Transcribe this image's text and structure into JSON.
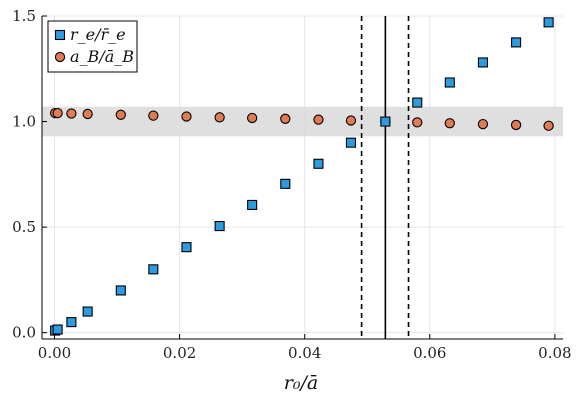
{
  "chart_data": {
    "type": "scatter",
    "title": "",
    "xlabel": "r₀/ā",
    "ylabel": "",
    "xlim": [
      -0.002,
      0.0813
    ],
    "ylim": [
      -0.03,
      1.5
    ],
    "x_ticks": [
      0.0,
      0.02,
      0.04,
      0.06,
      0.08
    ],
    "x_tick_labels": [
      "0.00",
      "0.02",
      "0.04",
      "0.06",
      "0.08"
    ],
    "y_ticks": [
      0.0,
      0.5,
      1.0,
      1.5
    ],
    "y_tick_labels": [
      "0.0",
      "0.5",
      "1.0",
      "1.5"
    ],
    "grid": true,
    "legend_position": "top-left",
    "band": {
      "y_low": 0.93,
      "y_high": 1.07,
      "color": "#d9d9d9"
    },
    "vlines": [
      {
        "x": 0.0491,
        "style": "dashed",
        "color": "#000000"
      },
      {
        "x": 0.0529,
        "style": "solid",
        "color": "#000000"
      },
      {
        "x": 0.0566,
        "style": "dashed",
        "color": "#000000"
      }
    ],
    "series": [
      {
        "name": "r_e/r̄_e",
        "marker": "square",
        "color": "#2e9be0",
        "x": [
          0.0001,
          0.0005,
          0.0027,
          0.0053,
          0.0106,
          0.0158,
          0.0211,
          0.0264,
          0.0316,
          0.0369,
          0.0422,
          0.0474,
          0.0529,
          0.058,
          0.0632,
          0.0685,
          0.0738,
          0.079
        ],
        "y": [
          0.01,
          0.015,
          0.05,
          0.1,
          0.2,
          0.3,
          0.405,
          0.505,
          0.605,
          0.705,
          0.8,
          0.9,
          1.0,
          1.09,
          1.185,
          1.28,
          1.375,
          1.47
        ]
      },
      {
        "name": "a_B/ā_B",
        "marker": "circle",
        "color": "#e07b54",
        "x": [
          0.0001,
          0.0005,
          0.0027,
          0.0053,
          0.0106,
          0.0158,
          0.0211,
          0.0264,
          0.0316,
          0.0369,
          0.0422,
          0.0474,
          0.0529,
          0.058,
          0.0632,
          0.0685,
          0.0738,
          0.079
        ],
        "y": [
          1.04,
          1.04,
          1.038,
          1.036,
          1.032,
          1.028,
          1.024,
          1.02,
          1.017,
          1.013,
          1.009,
          1.005,
          1.0,
          0.996,
          0.992,
          0.988,
          0.984,
          0.98
        ]
      }
    ]
  }
}
